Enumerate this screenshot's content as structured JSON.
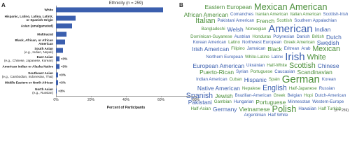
{
  "panel_a": {
    "label": "A"
  },
  "panel_b": {
    "label": "B"
  },
  "chart_data": [
    {
      "type": "hbar",
      "title": "Ethnicity (n = 259)",
      "x_label": "Percent of Participants",
      "color": "#3b5fae",
      "categories": [
        "White",
        "Hispanic, Latino, Latina, LatinX, or Spanish Origin",
        "Asian (amalgamated)",
        "Multiracial",
        "Black, African, or African American",
        "South Asian",
        "East Asian",
        "American Indian or Alaska Native",
        "Southeast Asian",
        "Middle Eastern or North African",
        "North Asian"
      ],
      "category_notes": [
        null,
        null,
        null,
        null,
        null,
        "(e.g., Indian, Nepali)",
        "(e.g., Chinese, Japanese, Korean)",
        null,
        "(e.g., Cambodian, Indonesian, Thai)",
        null,
        "(e.g., Russian)"
      ],
      "values": [
        61,
        11,
        9,
        6,
        5,
        4,
        2,
        2,
        1,
        1,
        0.5
      ],
      "value_labels": [
        null,
        null,
        null,
        null,
        null,
        null,
        "<3%",
        "<3%",
        "<3%",
        "<3%",
        "<3%"
      ],
      "xlim": [
        0,
        80
      ],
      "xticks": [
        {
          "value": 0,
          "label": "0%"
        },
        {
          "value": 20,
          "label": "20%"
        },
        {
          "value": 40,
          "label": "40%"
        },
        {
          "value": 60,
          "label": "60%"
        },
        {
          "value": 80,
          "label": "80%"
        }
      ]
    },
    {
      "type": "wordcloud",
      "note": "(n = 259)",
      "words": [
        {
          "text": "Eastern European",
          "weight": 2,
          "color": "#4b8f3a"
        },
        {
          "text": "Mexican American",
          "weight": 4,
          "color": "#4b8f3a"
        },
        {
          "text": "African American",
          "weight": 2,
          "color": "#4b8f3a"
        },
        {
          "text": "Comanches",
          "weight": 1,
          "color": "#3b5fae"
        },
        {
          "text": "Iranian American",
          "weight": 1,
          "color": "#4b8f3a"
        },
        {
          "text": "Italian American",
          "weight": 1,
          "color": "#4b8f3a"
        },
        {
          "text": "Scottish-Irish",
          "weight": 1,
          "color": "#3b5fae"
        },
        {
          "text": "Italian",
          "weight": 3,
          "color": "#4b8f3a"
        },
        {
          "text": "Pakistani American",
          "weight": 1,
          "color": "#3b5fae"
        },
        {
          "text": "French",
          "weight": 2,
          "color": "#4b8f3a"
        },
        {
          "text": "Scottish",
          "weight": 1,
          "color": "#4b8f3a"
        },
        {
          "text": "Southern Appalachian",
          "weight": 1,
          "color": "#3b5fae"
        },
        {
          "text": "Bangladeshi",
          "weight": 1,
          "color": "#4b8f3a"
        },
        {
          "text": "Welsh",
          "weight": 2,
          "color": "#3b5fae"
        },
        {
          "text": "Norwegian",
          "weight": 1,
          "color": "#4b8f3a"
        },
        {
          "text": "American",
          "weight": 5,
          "color": "#3b5fae"
        },
        {
          "text": "Indian",
          "weight": 2,
          "color": "#3b5fae"
        },
        {
          "text": "Dominican-Guyanese",
          "weight": 1,
          "color": "#4b8f3a"
        },
        {
          "text": "Austrian",
          "weight": 1,
          "color": "#3b5fae"
        },
        {
          "text": "Honduras",
          "weight": 1,
          "color": "#4b8f3a"
        },
        {
          "text": "Polynesian",
          "weight": 1,
          "color": "#3b5fae"
        },
        {
          "text": "Danish",
          "weight": 1,
          "color": "#3b5fae"
        },
        {
          "text": "British",
          "weight": 1,
          "color": "#4b8f3a"
        },
        {
          "text": "Dutch",
          "weight": 2,
          "color": "#3b5fae"
        },
        {
          "text": "Korean American",
          "weight": 1,
          "color": "#3b5fae"
        },
        {
          "text": "Latino",
          "weight": 1,
          "color": "#4b8f3a"
        },
        {
          "text": "Northwest European",
          "weight": 1,
          "color": "#3b5fae"
        },
        {
          "text": "Greek American",
          "weight": 1,
          "color": "#4b8f3a"
        },
        {
          "text": "Swedish",
          "weight": 2,
          "color": "#3b5fae"
        },
        {
          "text": "Irish American",
          "weight": 2,
          "color": "#3b5fae"
        },
        {
          "text": "Filipino",
          "weight": 1,
          "color": "#4b8f3a"
        },
        {
          "text": "Jamaican",
          "weight": 1,
          "color": "#3b5fae"
        },
        {
          "text": "Black",
          "weight": 2,
          "color": "#4b8f3a"
        },
        {
          "text": "Eritrean",
          "weight": 1,
          "color": "#3b5fae"
        },
        {
          "text": "Arab",
          "weight": 1,
          "color": "#3b5fae"
        },
        {
          "text": "Mexican",
          "weight": 3,
          "color": "#4b8f3a"
        },
        {
          "text": "Northern European",
          "weight": 1,
          "color": "#3b5fae"
        },
        {
          "text": "White-Latino",
          "weight": 1,
          "color": "#4b8f3a"
        },
        {
          "text": "Latinx",
          "weight": 1,
          "color": "#3b5fae"
        },
        {
          "text": "Irish",
          "weight": 5,
          "color": "#3b5fae"
        },
        {
          "text": "White",
          "weight": 3,
          "color": "#4b8f3a"
        },
        {
          "text": "European American",
          "weight": 2,
          "color": "#3b5fae"
        },
        {
          "text": "Ukrainian",
          "weight": 1,
          "color": "#3b5fae"
        },
        {
          "text": "Half-White",
          "weight": 1,
          "color": "#4b8f3a"
        },
        {
          "text": "Scottish",
          "weight": 3,
          "color": "#4b8f3a"
        },
        {
          "text": "Chinese",
          "weight": 2,
          "color": "#3b5fae"
        },
        {
          "text": "Puerto-Rican",
          "weight": 2,
          "color": "#4b8f3a"
        },
        {
          "text": "Syrian",
          "weight": 1,
          "color": "#3b5fae"
        },
        {
          "text": "Portuguese",
          "weight": 1,
          "color": "#4b8f3a"
        },
        {
          "text": "Caucasian",
          "weight": 1,
          "color": "#3b5fae"
        },
        {
          "text": "Scandinavian",
          "weight": 2,
          "color": "#4b8f3a"
        },
        {
          "text": "Indian American",
          "weight": 1,
          "color": "#3b5fae"
        },
        {
          "text": "Cuban",
          "weight": 1,
          "color": "#4b8f3a"
        },
        {
          "text": "Hispanic",
          "weight": 2,
          "color": "#3b5fae"
        },
        {
          "text": "Spain",
          "weight": 1,
          "color": "#4b8f3a"
        },
        {
          "text": "German",
          "weight": 5,
          "color": "#4b8f3a"
        },
        {
          "text": "Korean",
          "weight": 1,
          "color": "#3b5fae"
        },
        {
          "text": "Native American",
          "weight": 2,
          "color": "#3b5fae"
        },
        {
          "text": "Nepalese",
          "weight": 1,
          "color": "#4b8f3a"
        },
        {
          "text": "English",
          "weight": 3,
          "color": "#3b5fae"
        },
        {
          "text": "Half-Japanese",
          "weight": 1,
          "color": "#4b8f3a"
        },
        {
          "text": "Russian",
          "weight": 1,
          "color": "#3b5fae"
        },
        {
          "text": "Spanish",
          "weight": 3,
          "color": "#3b5fae"
        },
        {
          "text": "Jewish",
          "weight": 2,
          "color": "#4b8f3a"
        },
        {
          "text": "Brazilian-American",
          "weight": 1,
          "color": "#3b5fae"
        },
        {
          "text": "Greek",
          "weight": 1,
          "color": "#4b8f3a"
        },
        {
          "text": "Belgian",
          "weight": 1,
          "color": "#3b5fae"
        },
        {
          "text": "Hopi",
          "weight": 1,
          "color": "#4b8f3a"
        },
        {
          "text": "Dutch-American",
          "weight": 1,
          "color": "#3b5fae"
        },
        {
          "text": "Pakistani",
          "weight": 2,
          "color": "#3b5fae"
        },
        {
          "text": "Gambian",
          "weight": 1,
          "color": "#4b8f3a"
        },
        {
          "text": "Hungarian",
          "weight": 1,
          "color": "#3b5fae"
        },
        {
          "text": "Portuguese",
          "weight": 2,
          "color": "#4b8f3a"
        },
        {
          "text": "Minnesotan",
          "weight": 1,
          "color": "#3b5fae"
        },
        {
          "text": "Western-Europe",
          "weight": 1,
          "color": "#3b5fae"
        },
        {
          "text": "Half-Asian",
          "weight": 1,
          "color": "#4b8f3a"
        },
        {
          "text": "Germany",
          "weight": 2,
          "color": "#3b5fae"
        },
        {
          "text": "Vietnamese",
          "weight": 2,
          "color": "#4b8f3a"
        },
        {
          "text": "Polish",
          "weight": 4,
          "color": "#4b8f3a"
        },
        {
          "text": "Hawaiian",
          "weight": 1,
          "color": "#3b5fae"
        },
        {
          "text": "Half Turkish",
          "weight": 1,
          "color": "#4b8f3a"
        },
        {
          "text": "Argentinian",
          "weight": 1,
          "color": "#3b5fae"
        },
        {
          "text": "Half White",
          "weight": 1,
          "color": "#3b5fae"
        }
      ]
    }
  ]
}
